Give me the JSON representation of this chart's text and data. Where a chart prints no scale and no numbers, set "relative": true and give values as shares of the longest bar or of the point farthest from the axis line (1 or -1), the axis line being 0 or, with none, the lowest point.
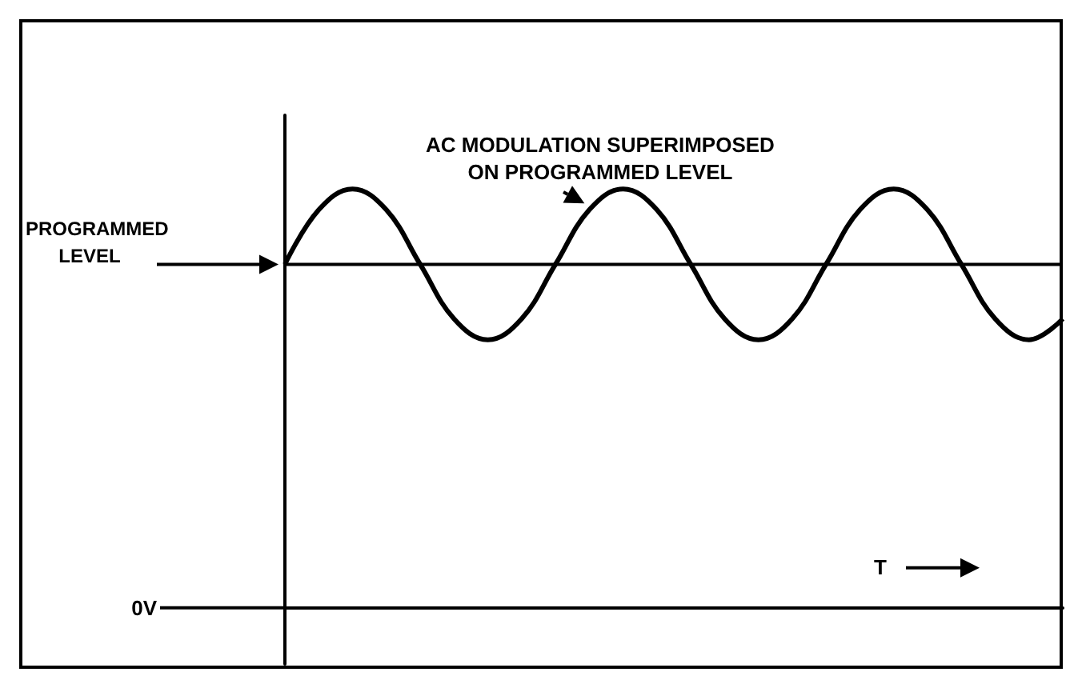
{
  "chart_data": {
    "type": "line",
    "relative": true,
    "xlabel": "T",
    "categories": [
      null,
      null,
      null,
      null,
      null,
      null,
      null,
      null,
      null,
      null,
      null,
      null,
      null,
      null,
      null,
      null,
      null,
      null,
      null,
      null,
      null,
      null,
      null,
      null
    ],
    "series": [
      {
        "color": "#000000",
        "values": [
          0.82,
          0.95,
          1.0,
          0.95,
          0.82,
          0.69,
          0.64,
          0.69,
          0.82,
          0.95,
          1.0,
          0.95,
          0.82,
          0.69,
          0.64,
          0.69,
          0.82,
          0.95,
          1.0,
          0.95,
          0.82,
          0.69,
          0.64,
          0.69
        ]
      },
      {
        "color": "#000000",
        "values": [
          0.82,
          0.82,
          0.82,
          0.82,
          0.82,
          0.82,
          0.82,
          0.82,
          0.82,
          0.82,
          0.82,
          0.82,
          0.82,
          0.82,
          0.82,
          0.82,
          0.82,
          0.82,
          0.82,
          0.82,
          0.82,
          0.82,
          0.82,
          0.82
        ]
      }
    ],
    "ref_lines": [
      {
        "axis": "y",
        "value": 0,
        "label": "0V"
      }
    ],
    "annotations": [
      "PROGRAMMED LEVEL",
      "AC MODULATION SUPERIMPOSED ON PROGRAMMED LEVEL"
    ]
  }
}
